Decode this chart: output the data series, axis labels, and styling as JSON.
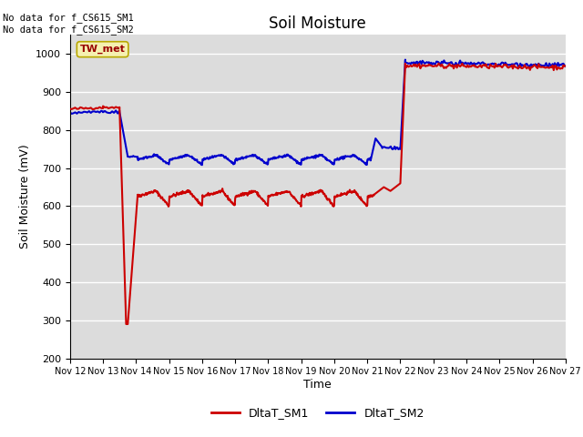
{
  "title": "Soil Moisture",
  "ylabel": "Soil Moisture (mV)",
  "xlabel": "Time",
  "xlim_days": [
    12,
    27
  ],
  "ylim": [
    200,
    1050
  ],
  "yticks": [
    200,
    300,
    400,
    500,
    600,
    700,
    800,
    900,
    1000
  ],
  "bg_color": "#dcdcdc",
  "fig_bg_color": "#ffffff",
  "color_sm1": "#cc0000",
  "color_sm2": "#0000cc",
  "legend_labels": [
    "DltaT_SM1",
    "DltaT_SM2"
  ],
  "annotation_text": "No data for f_CS615_SM1\nNo data for f_CS615_SM2",
  "box_label": "TW_met",
  "xtick_labels": [
    "Nov 12",
    "Nov 13",
    "Nov 14",
    "Nov 15",
    "Nov 16",
    "Nov 17",
    "Nov 18",
    "Nov 19",
    "Nov 20",
    "Nov 21",
    "Nov 22",
    "Nov 23",
    "Nov 24",
    "Nov 25",
    "Nov 26",
    "Nov 27"
  ],
  "linewidth": 1.5
}
